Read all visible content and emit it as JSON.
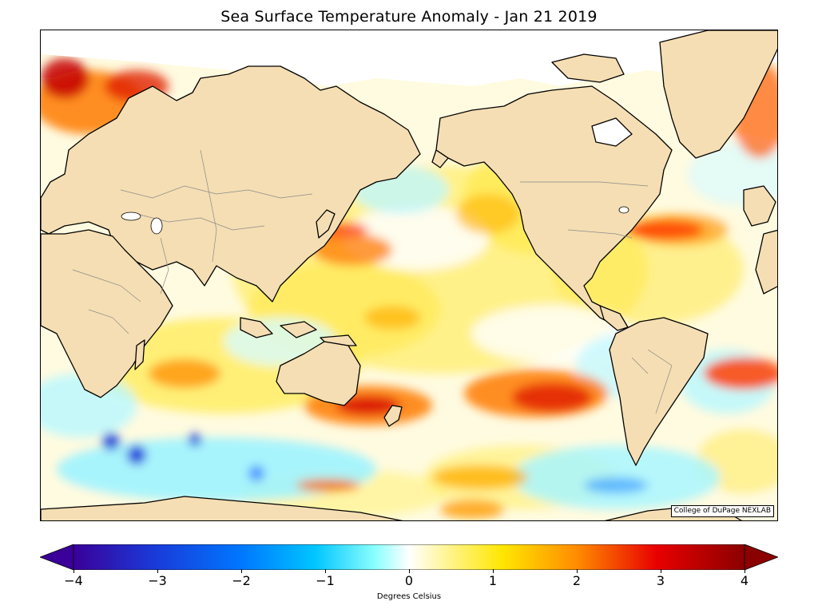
{
  "title": "Sea Surface Temperature Anomaly - Jan 21 2019",
  "credit": "College of DuPage NEXLAB",
  "colorbar": {
    "label": "Degrees Celsius",
    "min": -4,
    "max": 4,
    "extend": "both",
    "ticks": [
      "−4",
      "−3",
      "−2",
      "−1",
      "0",
      "1",
      "2",
      "3",
      "4"
    ],
    "tick_values": [
      -4,
      -3,
      -2,
      -1,
      0,
      1,
      2,
      3,
      4
    ],
    "colors": [
      "#3a0099",
      "#0a2fe0",
      "#0077ff",
      "#00bfff",
      "#66ffff",
      "#ffffff",
      "#fff27a",
      "#ffe600",
      "#ff9a00",
      "#ff3b00",
      "#d40000",
      "#8b0000"
    ]
  },
  "map": {
    "projection": "cylindrical, Pacific-centered",
    "land_color": "#f5deb3",
    "coastline_color": "#000000",
    "border_color": "#8a8a8a",
    "ocean_field": "sea surface temperature anomaly"
  }
}
